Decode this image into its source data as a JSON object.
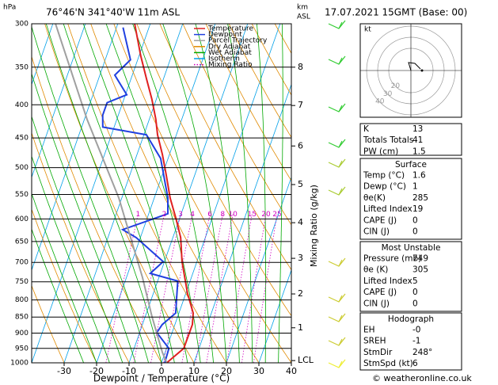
{
  "chart_data": {
    "type": "skewt",
    "title": "76°46'N  341°40'W  11m  ASL",
    "subtitle": "17.07.2021  15GMT  (Base: 00)",
    "y_unit": "hPa",
    "y2_unit": "km",
    "y2_unit_sub": "ASL",
    "xlabel": "Dewpoint / Temperature (°C)",
    "mixing_label": "Mixing Ratio (g/kg)",
    "xlim": [
      -40,
      40
    ],
    "xticks": [
      -30,
      -20,
      -10,
      0,
      10,
      20,
      30,
      40
    ],
    "ylim": [
      1000,
      300
    ],
    "yticks": [
      300,
      350,
      400,
      450,
      500,
      550,
      600,
      650,
      700,
      750,
      800,
      850,
      900,
      950,
      1000
    ],
    "log_y": true,
    "height_ticks": [
      {
        "value": 350,
        "label": "8"
      },
      {
        "value": 401,
        "label": "7"
      },
      {
        "value": 463,
        "label": "6"
      },
      {
        "value": 531,
        "label": "5"
      },
      {
        "value": 608,
        "label": "4"
      },
      {
        "value": 690,
        "label": "3"
      },
      {
        "value": 783,
        "label": "2"
      },
      {
        "value": 883,
        "label": "1"
      },
      {
        "value": 992,
        "label": "LCL"
      }
    ],
    "mixing_ratios": [
      1,
      2,
      3,
      4,
      6,
      8,
      10,
      15,
      20,
      25
    ],
    "series": [
      {
        "name": "Temperature",
        "color": "#e02020",
        "pressure": [
          1000,
          950,
          873,
          838,
          781,
          698,
          641,
          598,
          557,
          512,
          477,
          445,
          421,
          392,
          365,
          336,
          300
        ],
        "values": [
          1.6,
          5.3,
          5.4,
          4.4,
          0.5,
          -4.6,
          -7.6,
          -11.2,
          -15.1,
          -18.9,
          -22.2,
          -25.8,
          -28.0,
          -31.4,
          -35.2,
          -39.5,
          -44.8
        ]
      },
      {
        "name": "Dewpoint",
        "color": "#2040e0",
        "pressure": [
          1000,
          950,
          898,
          873,
          838,
          748,
          728,
          698,
          641,
          623,
          589,
          557,
          484,
          445,
          433,
          415,
          397,
          386,
          360,
          341,
          304
        ],
        "values": [
          1,
          0.7,
          -4.7,
          -3.9,
          -1.0,
          -3.8,
          -13.1,
          -10.4,
          -21.3,
          -26.3,
          -14.1,
          -15.8,
          -22.3,
          -29.2,
          -43.5,
          -44.8,
          -44.8,
          -39.6,
          -45.4,
          -42.2,
          -48.0
        ]
      },
      {
        "name": "Parcel Trajectory",
        "color": "#a0a0a0",
        "pressure": [
          1000,
          963,
          849,
          738,
          557,
          421,
          300
        ],
        "values": [
          1.6,
          -0.9,
          -7.9,
          -15.1,
          -30.9,
          -49.2,
          -69.2
        ]
      }
    ],
    "background_lines": [
      {
        "name": "Dry Adiabat",
        "color": "#e08a00"
      },
      {
        "name": "Wet Adiabat",
        "color": "#00a800"
      },
      {
        "name": "Isotherm",
        "color": "#00a0e8"
      },
      {
        "name": "Mixing Ratio",
        "color": "#d000c0"
      }
    ],
    "hodograph": {
      "unit": "kt",
      "rings": [
        20,
        30,
        40
      ]
    }
  },
  "indices": {
    "rows": [
      [
        "K",
        "13"
      ],
      [
        "Totals Totals",
        "41"
      ],
      [
        "PW (cm)",
        "1.5"
      ]
    ]
  },
  "surface": {
    "title": "Surface",
    "rows": [
      [
        "Temp (°C)",
        "1.6"
      ],
      [
        "Dewp (°C)",
        "1"
      ],
      [
        "θe(K)",
        "285"
      ],
      [
        "Lifted Index",
        "19"
      ],
      [
        "CAPE (J)",
        "0"
      ],
      [
        "CIN (J)",
        "0"
      ]
    ]
  },
  "most_unstable": {
    "title": "Most Unstable",
    "rows": [
      [
        "Pressure (mb)",
        "749"
      ],
      [
        "θe (K)",
        "305"
      ],
      [
        "Lifted Index",
        "5"
      ],
      [
        "CAPE (J)",
        "0"
      ],
      [
        "CIN (J)",
        "0"
      ]
    ]
  },
  "hodograph_table": {
    "title": "Hodograph",
    "rows": [
      [
        "EH",
        "-0"
      ],
      [
        "SREH",
        "-1"
      ],
      [
        "StmDir",
        "248°"
      ],
      [
        "StmSpd (kt)",
        "6"
      ]
    ]
  },
  "footer": "© weatheronline.co.uk"
}
